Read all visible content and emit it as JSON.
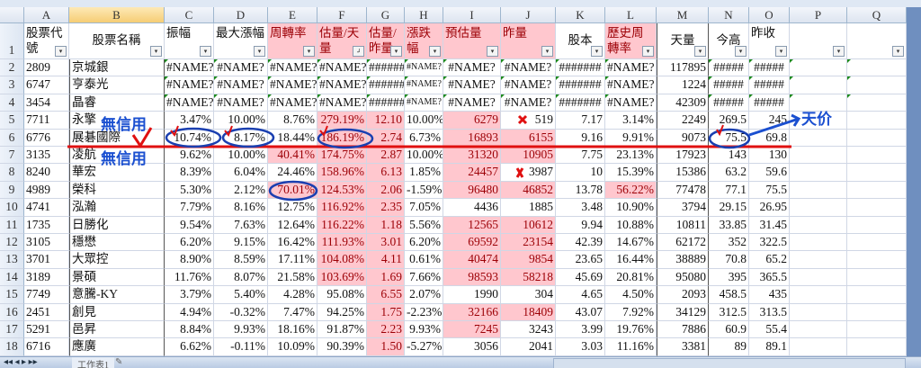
{
  "columns": [
    "A",
    "B",
    "C",
    "D",
    "E",
    "F",
    "G",
    "H",
    "I",
    "J",
    "K",
    "L",
    "M",
    "N",
    "O",
    "P",
    "Q"
  ],
  "headers": [
    "股票代號",
    "股票名稱",
    "振幅",
    "最大漲幅",
    "周轉率",
    "估量/天量",
    "估量/昨量",
    "漲跌幅",
    "預估量",
    "昨量",
    "股本",
    "歷史周轉率",
    "天量",
    "今高",
    "昨收",
    "",
    ""
  ],
  "header_pink": [
    "E",
    "F",
    "G",
    "H",
    "I",
    "J",
    "L"
  ],
  "rows": [
    {
      "n": "2",
      "v": [
        "2809",
        "京城銀",
        "#NAME?",
        "#NAME?",
        "#NAME?",
        "#NAME?",
        "######",
        "#NAME?",
        "#NAME?",
        "#NAME?",
        "#######",
        "#NAME?",
        "117895",
        "#####",
        "#####"
      ],
      "pink": []
    },
    {
      "n": "3",
      "v": [
        "6747",
        "亨泰光",
        "#NAME?",
        "#NAME?",
        "#NAME?",
        "#NAME?",
        "######",
        "#NAME?",
        "#NAME?",
        "#NAME?",
        "#######",
        "#NAME?",
        "1224",
        "#####",
        "#####"
      ],
      "pink": []
    },
    {
      "n": "4",
      "v": [
        "3454",
        "晶睿",
        "#NAME?",
        "#NAME?",
        "#NAME?",
        "#NAME?",
        "######",
        "#NAME?",
        "#NAME?",
        "#NAME?",
        "#######",
        "#NAME?",
        "42309",
        "#####",
        "#####"
      ],
      "pink": []
    },
    {
      "n": "5",
      "v": [
        "7711",
        "永擎",
        "3.47%",
        "10.00%",
        "8.76%",
        "279.19%",
        "12.10",
        "10.00%",
        "6279",
        "519",
        "7.17",
        "3.14%",
        "2249",
        "269.5",
        "245"
      ],
      "pink": [
        "F",
        "G",
        "I"
      ]
    },
    {
      "n": "6",
      "v": [
        "6776",
        "展碁國際",
        "10.74%",
        "8.17%",
        "18.44%",
        "186.19%",
        "2.74",
        "6.73%",
        "16893",
        "6155",
        "9.16",
        "9.91%",
        "9073",
        "75.5",
        "69.8"
      ],
      "pink": [
        "F",
        "G",
        "I",
        "J"
      ]
    },
    {
      "n": "7",
      "v": [
        "3135",
        "凌航",
        "9.62%",
        "10.00%",
        "40.41%",
        "174.75%",
        "2.87",
        "10.00%",
        "31320",
        "10905",
        "7.75",
        "23.13%",
        "17923",
        "143",
        "130"
      ],
      "pink": [
        "E",
        "F",
        "G",
        "I",
        "J"
      ]
    },
    {
      "n": "8",
      "v": [
        "8240",
        "華宏",
        "8.39%",
        "6.04%",
        "24.46%",
        "158.96%",
        "6.13",
        "1.85%",
        "24457",
        "3987",
        "10",
        "15.39%",
        "15386",
        "63.2",
        "59.6"
      ],
      "pink": [
        "F",
        "G",
        "I"
      ]
    },
    {
      "n": "9",
      "v": [
        "4989",
        "榮科",
        "5.30%",
        "2.12%",
        "70.01%",
        "124.53%",
        "2.06",
        "-1.59%",
        "96480",
        "46852",
        "13.78",
        "56.22%",
        "77478",
        "77.1",
        "75.5"
      ],
      "pink": [
        "E",
        "F",
        "G",
        "I",
        "J",
        "L"
      ]
    },
    {
      "n": "10",
      "v": [
        "4741",
        "泓瀚",
        "7.79%",
        "8.16%",
        "12.75%",
        "116.92%",
        "2.35",
        "7.05%",
        "4436",
        "1885",
        "3.48",
        "10.90%",
        "3794",
        "29.15",
        "26.95"
      ],
      "pink": [
        "F",
        "G"
      ]
    },
    {
      "n": "11",
      "v": [
        "1735",
        "日勝化",
        "9.54%",
        "7.63%",
        "12.64%",
        "116.22%",
        "1.18",
        "5.56%",
        "12565",
        "10612",
        "9.94",
        "10.88%",
        "10811",
        "33.85",
        "31.45"
      ],
      "pink": [
        "F",
        "G",
        "I",
        "J"
      ]
    },
    {
      "n": "12",
      "v": [
        "3105",
        "穩懋",
        "6.20%",
        "9.15%",
        "16.42%",
        "111.93%",
        "3.01",
        "6.20%",
        "69592",
        "23154",
        "42.39",
        "14.67%",
        "62172",
        "352",
        "322.5"
      ],
      "pink": [
        "F",
        "G",
        "I",
        "J"
      ]
    },
    {
      "n": "13",
      "v": [
        "3701",
        "大眾控",
        "8.90%",
        "8.59%",
        "17.11%",
        "104.08%",
        "4.11",
        "0.61%",
        "40474",
        "9854",
        "23.65",
        "16.44%",
        "38889",
        "70.8",
        "65.2"
      ],
      "pink": [
        "F",
        "G",
        "I",
        "J"
      ]
    },
    {
      "n": "14",
      "v": [
        "3189",
        "景碩",
        "11.76%",
        "8.07%",
        "21.58%",
        "103.69%",
        "1.69",
        "7.66%",
        "98593",
        "58218",
        "45.69",
        "20.81%",
        "95080",
        "395",
        "365.5"
      ],
      "pink": [
        "F",
        "G",
        "I",
        "J"
      ]
    },
    {
      "n": "15",
      "v": [
        "7749",
        "意騰-KY",
        "3.79%",
        "5.40%",
        "4.28%",
        "95.08%",
        "6.55",
        "2.07%",
        "1990",
        "304",
        "4.65",
        "4.50%",
        "2093",
        "458.5",
        "435"
      ],
      "pink": [
        "G"
      ]
    },
    {
      "n": "16",
      "v": [
        "2451",
        "創見",
        "4.94%",
        "-0.32%",
        "7.47%",
        "94.25%",
        "1.75",
        "-2.23%",
        "32166",
        "18409",
        "43.07",
        "7.92%",
        "34129",
        "312.5",
        "313.5"
      ],
      "pink": [
        "G",
        "I",
        "J"
      ]
    },
    {
      "n": "17",
      "v": [
        "5291",
        "邑昇",
        "8.84%",
        "9.93%",
        "18.16%",
        "91.87%",
        "2.23",
        "9.93%",
        "7245",
        "3243",
        "3.99",
        "19.76%",
        "7886",
        "60.9",
        "55.4"
      ],
      "pink": [
        "G",
        "I"
      ]
    },
    {
      "n": "18",
      "v": [
        "6716",
        "應廣",
        "6.62%",
        "-0.11%",
        "10.09%",
        "90.39%",
        "1.50",
        "-5.27%",
        "3056",
        "2041",
        "3.03",
        "11.16%",
        "3381",
        "89",
        "89.1"
      ],
      "pink": [
        "G"
      ]
    }
  ],
  "row1_label": "1",
  "sheet_tab": "工作表1",
  "annotations": {
    "no_credit_1": "無信用",
    "no_credit_2": "無信用",
    "sky_price": "天价"
  },
  "colors": {
    "highlight_bg": "#ffc7ce",
    "highlight_text": "#9c0006",
    "annotation_red": "#e01010",
    "annotation_blue": "#1a4fd0"
  }
}
